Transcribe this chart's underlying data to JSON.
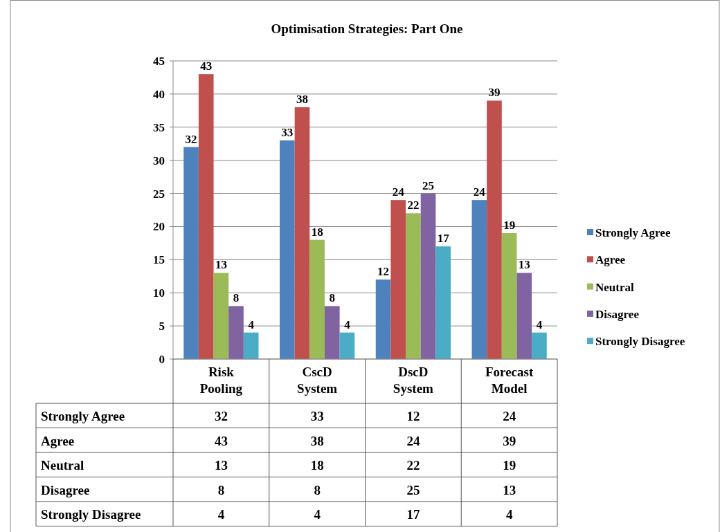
{
  "chart_data": [
    {
      "type": "bar",
      "title": "Optimisation Strategies: Part One",
      "categories": [
        "Risk Pooling",
        "CscD System",
        "DscD System",
        "Forecast Model"
      ],
      "series": [
        {
          "name": "Strongly Agree",
          "color": "#4f81bd",
          "values": [
            32,
            33,
            12,
            24
          ]
        },
        {
          "name": "Agree",
          "color": "#c0504d",
          "values": [
            43,
            38,
            24,
            39
          ]
        },
        {
          "name": "Neutral",
          "color": "#9bbb59",
          "values": [
            13,
            18,
            22,
            19
          ]
        },
        {
          "name": "Disagree",
          "color": "#8064a2",
          "values": [
            8,
            8,
            25,
            13
          ]
        },
        {
          "name": "Strongly Disagree",
          "color": "#4bacc6",
          "values": [
            4,
            4,
            17,
            4
          ]
        }
      ],
      "ylim": [
        0,
        45
      ],
      "yticks": [
        0,
        5,
        10,
        15,
        20,
        25,
        30,
        35,
        40,
        45
      ],
      "grid": "y",
      "legend": "right",
      "data_labels": true
    },
    {
      "type": "other",
      "annotations": [
        "Strongly Agree",
        "32",
        "33",
        "12",
        "24",
        "Agree",
        "43",
        "38",
        "24",
        "39",
        "Neutral",
        "13",
        "18",
        "22",
        "19",
        "Disagree",
        "8",
        "8",
        "25",
        "13",
        "Strongly Disagree",
        "4",
        "4",
        "17",
        "4"
      ]
    }
  ]
}
